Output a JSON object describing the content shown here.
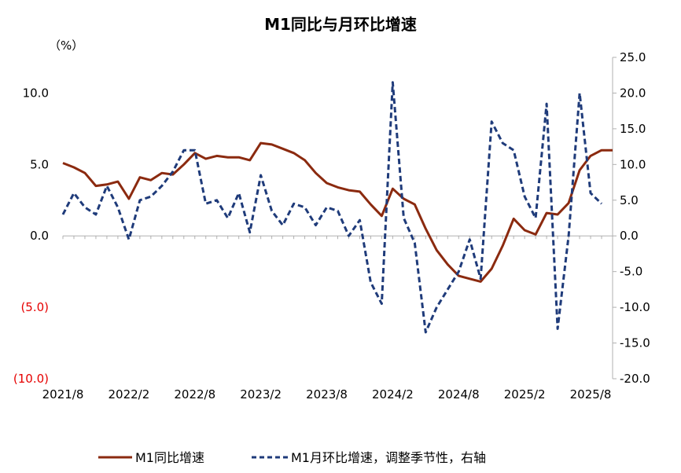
{
  "chart_data": {
    "type": "line",
    "title": "M1同比与月环比增速",
    "y_unit_label": "（%）",
    "left_axis": {
      "ylim": [
        -10,
        12.5
      ],
      "tick_values": [
        10,
        5,
        0,
        -5,
        -10
      ],
      "tick_labels": [
        "10.0",
        "5.0",
        "0.0",
        "(5.0)",
        "(10.0)"
      ]
    },
    "right_axis": {
      "ylim": [
        -20,
        25
      ],
      "tick_values": [
        25,
        20,
        15,
        10,
        5,
        0,
        -5,
        -10,
        -15,
        -20
      ],
      "tick_labels": [
        "25.0",
        "20.0",
        "15.0",
        "10.0",
        "5.0",
        "0.0",
        "-5.0",
        "-10.0",
        "-15.0",
        "-20.0"
      ]
    },
    "x_tick_labels": [
      "2021/8",
      "2022/2",
      "2022/8",
      "2023/2",
      "2023/8",
      "2024/2",
      "2024/8",
      "2025/2",
      "2025/8"
    ],
    "series": [
      {
        "name": "M1同比增速",
        "axis": "left",
        "color": "#8b2a0f",
        "style": "solid",
        "values": [
          5.1,
          4.8,
          4.4,
          3.5,
          3.6,
          3.8,
          2.6,
          4.1,
          3.9,
          4.4,
          4.3,
          5.0,
          5.8,
          5.4,
          5.6,
          5.5,
          5.5,
          5.3,
          6.5,
          6.4,
          6.1,
          5.8,
          5.3,
          4.4,
          3.7,
          3.4,
          3.2,
          3.1,
          2.2,
          1.4,
          3.3,
          2.6,
          2.2,
          0.5,
          -1.0,
          -2.0,
          -2.8,
          -3.0,
          -3.2,
          -2.3,
          -0.7,
          1.2,
          0.4,
          0.1,
          1.6,
          1.5,
          2.3,
          4.6,
          5.6,
          6.0,
          6.0
        ]
      },
      {
        "name": "M1月环比增速，调整季节性，右轴",
        "axis": "right",
        "color": "#1f3b7a",
        "style": "dashed",
        "values": [
          3.0,
          6.0,
          4.0,
          3.0,
          7.0,
          4.0,
          -0.5,
          5.0,
          5.5,
          7.0,
          9.0,
          12.0,
          12.0,
          4.5,
          5.0,
          2.5,
          6.0,
          0.5,
          8.5,
          3.5,
          1.5,
          4.5,
          4.0,
          1.5,
          4.0,
          3.5,
          0.0,
          2.2,
          -6.5,
          -9.5,
          21.5,
          2.5,
          -1.0,
          -13.5,
          -10.0,
          -7.5,
          -5.0,
          -0.5,
          -6.0,
          16.0,
          13.0,
          12.0,
          5.5,
          2.5,
          18.5,
          -13.0,
          0.0,
          20.0,
          6.0,
          4.5
        ]
      }
    ]
  }
}
